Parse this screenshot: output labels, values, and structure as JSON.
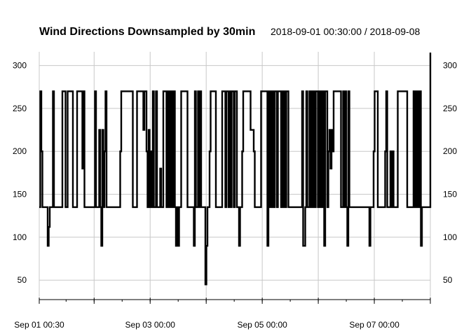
{
  "chart_data": {
    "type": "line",
    "title": "Wind Directions Downsampled by 30min",
    "subtitle": "2018-09-01 00:30:00 / 2018-09-08",
    "step_minutes": 30,
    "x_start": "2018-09-01 00:30",
    "x_end": "2018-09-08 00:00",
    "ylim": [
      42,
      316
    ],
    "y_ticks": [
      50,
      100,
      150,
      200,
      250,
      300
    ],
    "x_tick_labels": [
      {
        "date": "2018-09-01 00:30",
        "label": "Sep 01 00:30"
      },
      {
        "date": "2018-09-03 00:00",
        "label": "Sep 03 00:00"
      },
      {
        "date": "2018-09-05 00:00",
        "label": "Sep 05 00:00"
      },
      {
        "date": "2018-09-07 00:00",
        "label": "Sep 07 00:00"
      }
    ],
    "x_minor_ticks": [
      "2018-09-02 00:00",
      "2018-09-04 00:00",
      "2018-09-06 00:00"
    ],
    "grid": true,
    "y_axis_both_sides": true,
    "series": [
      {
        "color": "#000000",
        "values": [
          135,
          270,
          200,
          135,
          135,
          135,
          135,
          135,
          90,
          112,
          135,
          135,
          135,
          270,
          135,
          135,
          135,
          135,
          135,
          135,
          135,
          135,
          270,
          270,
          270,
          135,
          135,
          270,
          270,
          270,
          270,
          270,
          135,
          135,
          135,
          135,
          270,
          270,
          270,
          270,
          270,
          180,
          270,
          135,
          135,
          135,
          135,
          135,
          135,
          135,
          135,
          135,
          135,
          270,
          135,
          135,
          135,
          225,
          135,
          90,
          225,
          135,
          200,
          270,
          135,
          135,
          135,
          135,
          135,
          135,
          135,
          135,
          135,
          135,
          135,
          135,
          135,
          200,
          270,
          270,
          270,
          270,
          270,
          270,
          270,
          270,
          270,
          270,
          270,
          135,
          135,
          135,
          135,
          270,
          270,
          270,
          270,
          270,
          270,
          225,
          270,
          270,
          200,
          135,
          225,
          135,
          200,
          135,
          270,
          135,
          135,
          270,
          135,
          135,
          135,
          180,
          135,
          135,
          270,
          270,
          270,
          135,
          270,
          135,
          270,
          135,
          270,
          135,
          270,
          135,
          90,
          135,
          90,
          135,
          135,
          270,
          270,
          270,
          270,
          270,
          270,
          135,
          135,
          135,
          135,
          135,
          135,
          90,
          270,
          135,
          135,
          270,
          135,
          270,
          135,
          135,
          135,
          135,
          45,
          90,
          135,
          135,
          200,
          270,
          270,
          270,
          270,
          270,
          135,
          135,
          135,
          135,
          135,
          135,
          270,
          270,
          270,
          135,
          270,
          270,
          135,
          270,
          135,
          270,
          270,
          135,
          270,
          270,
          135,
          135,
          90,
          135,
          135,
          200,
          270,
          270,
          270,
          270,
          270,
          270,
          270,
          225,
          225,
          225,
          200,
          135,
          135,
          135,
          135,
          135,
          135,
          270,
          270,
          270,
          270,
          270,
          270,
          90,
          270,
          135,
          270,
          135,
          270,
          135,
          270,
          270,
          135,
          270,
          270,
          270,
          135,
          270,
          135,
          270,
          135,
          270,
          270,
          135,
          135,
          135,
          135,
          135,
          135,
          135,
          135,
          135,
          135,
          135,
          135,
          135,
          270,
          90,
          90,
          135,
          270,
          135,
          135,
          270,
          135,
          270,
          135,
          270,
          135,
          270,
          270,
          135,
          270,
          135,
          270,
          135,
          270,
          90,
          270,
          270,
          135,
          200,
          225,
          180,
          225,
          200,
          270,
          270,
          270,
          270,
          270,
          270,
          270,
          135,
          135,
          270,
          135,
          270,
          135,
          90,
          270,
          135,
          135,
          135,
          135,
          135,
          135,
          135,
          135,
          135,
          135,
          135,
          135,
          135,
          135,
          135,
          135,
          135,
          135,
          135,
          90,
          135,
          135,
          135,
          200,
          270,
          270,
          270,
          135,
          135,
          135,
          135,
          135,
          135,
          135,
          200,
          270,
          135,
          135,
          135,
          200,
          135,
          200,
          135,
          135,
          135,
          135,
          270,
          270,
          270,
          270,
          270,
          270,
          270,
          270,
          270,
          135,
          135,
          135,
          135,
          135,
          135,
          270,
          135,
          270,
          135,
          270,
          135,
          270,
          90,
          135,
          135,
          135,
          135,
          135,
          135,
          135,
          135,
          315
        ]
      }
    ]
  }
}
